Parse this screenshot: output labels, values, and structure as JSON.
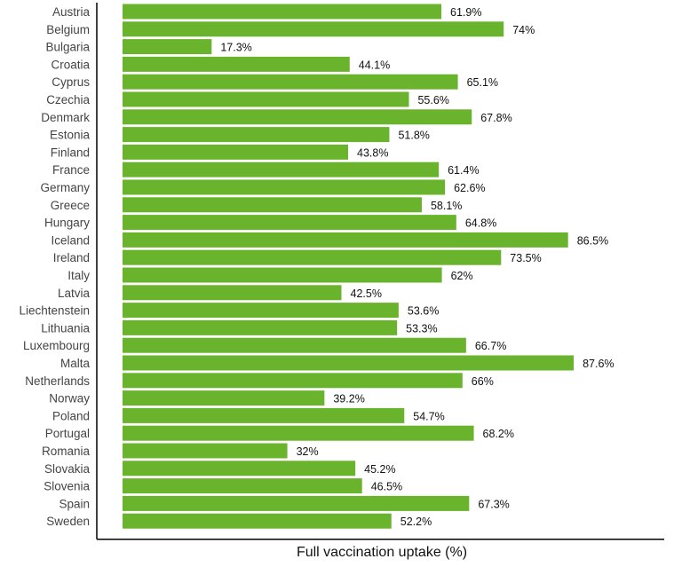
{
  "chart_data": {
    "type": "bar",
    "orientation": "horizontal",
    "title": "",
    "xlabel": "Full vaccination uptake (%)",
    "ylabel": "",
    "xlim": [
      0,
      100
    ],
    "grid": false,
    "legend": "none",
    "bar_color": "#6ab42d",
    "value_suffix": "%",
    "categories": [
      "Austria",
      "Belgium",
      "Bulgaria",
      "Croatia",
      "Cyprus",
      "Czechia",
      "Denmark",
      "Estonia",
      "Finland",
      "France",
      "Germany",
      "Greece",
      "Hungary",
      "Iceland",
      "Ireland",
      "Italy",
      "Latvia",
      "Liechtenstein",
      "Lithuania",
      "Luxembourg",
      "Malta",
      "Netherlands",
      "Norway",
      "Poland",
      "Portugal",
      "Romania",
      "Slovakia",
      "Slovenia",
      "Spain",
      "Sweden"
    ],
    "values": [
      61.9,
      74,
      17.3,
      44.1,
      65.1,
      55.6,
      67.8,
      51.8,
      43.8,
      61.4,
      62.6,
      58.1,
      64.8,
      86.5,
      73.5,
      62,
      42.5,
      53.6,
      53.3,
      66.7,
      87.6,
      66,
      39.2,
      54.7,
      68.2,
      32,
      45.2,
      46.5,
      67.3,
      52.2
    ]
  }
}
